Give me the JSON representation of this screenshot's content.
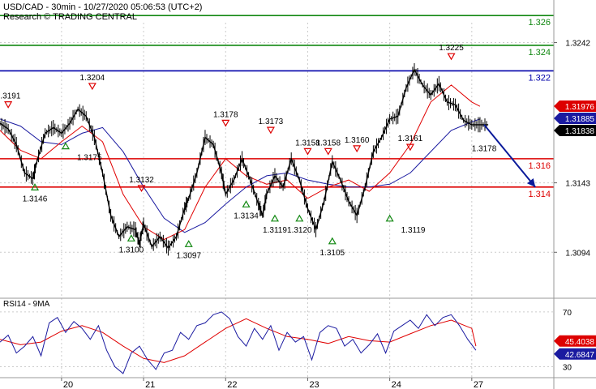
{
  "header": {
    "title": "USD/CAD - 30min - 10/27/2020 05:06:53 (UTC+2)",
    "subtitle": "Research © TRADING CENTRAL"
  },
  "colors": {
    "price": "#000000",
    "ma_fast": "#e00000",
    "ma_slow": "#1a1aa0",
    "resistance_green": "#118811",
    "resistance_blue": "#0000aa",
    "support_red": "#dd0000",
    "arrow": "#0a1a9a",
    "tag_red": "#dd0000",
    "tag_blue": "#1a1aa0",
    "tag_black": "#000000"
  },
  "chart_data": [
    {
      "type": "line",
      "name": "price-panel",
      "ylim": [
        1.3065,
        1.3272
      ],
      "y_ticks": [
        {
          "value": 1.3242,
          "label": "1.3242"
        },
        {
          "value": 1.3143,
          "label": "1.3143"
        },
        {
          "value": 1.3094,
          "label": "1.3094"
        }
      ],
      "x_ticks": [
        "20",
        "21",
        "22",
        "23",
        "24",
        "27"
      ],
      "x_tick_positions": [
        1.0,
        3.0,
        5.0,
        7.0,
        9.0,
        11.0
      ],
      "xlim": [
        -0.5,
        13.0
      ],
      "levels": [
        {
          "value": 1.3261,
          "label": "1.326",
          "color": "#118811"
        },
        {
          "value": 1.324,
          "label": "1.324",
          "color": "#118811"
        },
        {
          "value": 1.3222,
          "label": "1.322",
          "color": "#0000aa"
        },
        {
          "value": 1.316,
          "label": "1.316",
          "color": "#dd0000"
        },
        {
          "value": 1.314,
          "label": "1.314",
          "color": "#dd0000"
        }
      ],
      "price_tags": [
        {
          "value": 1.31976,
          "label": "1.31976",
          "color": "#dd0000"
        },
        {
          "value": 1.31885,
          "label": "1.31885",
          "color": "#1a1aa0"
        },
        {
          "value": 1.31838,
          "label": "1.31838",
          "color": "#000000"
        }
      ],
      "series": [
        {
          "name": "",
          "x": [
            -0.5,
            -0.3,
            -0.1,
            0.1,
            0.3,
            0.4,
            0.6,
            0.8,
            1.0,
            1.2,
            1.4,
            1.6,
            1.8,
            2.0,
            2.2,
            2.4,
            2.6,
            2.8,
            2.9,
            3.0,
            3.2,
            3.4,
            3.6,
            3.8,
            4.0,
            4.1,
            4.3,
            4.5,
            4.7,
            4.9,
            5.0,
            5.2,
            5.4,
            5.6,
            5.8,
            5.9,
            6.0,
            6.2,
            6.4,
            6.6,
            6.8,
            7.0,
            7.2,
            7.4,
            7.6,
            7.8,
            8.0,
            8.2,
            8.4,
            8.6,
            8.8,
            9.0,
            9.2,
            9.4,
            9.6,
            9.8,
            10.0,
            10.2,
            10.4,
            10.6,
            10.8,
            11.0,
            11.2,
            11.4
          ],
          "y": [
            1.3185,
            1.3181,
            1.317,
            1.315,
            1.3146,
            1.3158,
            1.3178,
            1.3182,
            1.3178,
            1.3185,
            1.3195,
            1.319,
            1.3175,
            1.315,
            1.312,
            1.3105,
            1.3112,
            1.311,
            1.31,
            1.3114,
            1.3098,
            1.3105,
            1.3097,
            1.3105,
            1.3125,
            1.3132,
            1.315,
            1.3175,
            1.317,
            1.315,
            1.3135,
            1.3145,
            1.316,
            1.3145,
            1.3128,
            1.312,
            1.3135,
            1.3148,
            1.314,
            1.316,
            1.3145,
            1.3125,
            1.311,
            1.313,
            1.3158,
            1.3145,
            1.313,
            1.312,
            1.314,
            1.3165,
            1.3175,
            1.3188,
            1.319,
            1.321,
            1.3223,
            1.3212,
            1.3205,
            1.3213,
            1.32,
            1.3198,
            1.3187,
            1.3184,
            1.3184,
            1.3184
          ]
        },
        {
          "name": "",
          "x": [
            -0.5,
            0.0,
            0.5,
            1.0,
            1.5,
            2.0,
            2.5,
            3.0,
            3.5,
            4.0,
            4.5,
            5.0,
            5.5,
            6.0,
            6.5,
            7.0,
            7.5,
            8.0,
            8.5,
            9.0,
            9.5,
            10.0,
            10.5,
            11.0,
            11.2
          ],
          "y": [
            1.318,
            1.3166,
            1.316,
            1.3172,
            1.3183,
            1.3172,
            1.3135,
            1.3112,
            1.3103,
            1.311,
            1.314,
            1.316,
            1.3148,
            1.3142,
            1.3145,
            1.3132,
            1.314,
            1.3145,
            1.3137,
            1.315,
            1.317,
            1.32,
            1.3212,
            1.32,
            1.3197
          ]
        },
        {
          "name": "",
          "x": [
            -0.5,
            0.0,
            0.5,
            1.0,
            1.5,
            2.0,
            2.5,
            3.0,
            3.5,
            4.0,
            4.5,
            5.0,
            5.5,
            6.0,
            6.5,
            7.0,
            7.5,
            8.0,
            8.5,
            9.0,
            9.5,
            10.0,
            10.5,
            11.0,
            11.2
          ],
          "y": [
            1.3188,
            1.3183,
            1.3172,
            1.317,
            1.3178,
            1.3182,
            1.3165,
            1.314,
            1.3118,
            1.3108,
            1.3115,
            1.3128,
            1.314,
            1.3148,
            1.315,
            1.3145,
            1.3142,
            1.314,
            1.314,
            1.3142,
            1.315,
            1.3165,
            1.318,
            1.3186,
            1.3188
          ]
        }
      ],
      "forecast_arrow": {
        "from": [
          11.3,
          1.3184
        ],
        "to": [
          12.55,
          1.314
        ]
      },
      "annotations": [
        {
          "label": "1.3191",
          "x": -0.3,
          "y": 1.3191,
          "marker": "down",
          "pos": "above"
        },
        {
          "label": "1.3146",
          "x": 0.35,
          "y": 1.3146,
          "marker": "up",
          "pos": "below"
        },
        {
          "label": "1.3175",
          "x": 1.1,
          "y": 1.3175,
          "marker": "up",
          "pos": "below-right"
        },
        {
          "label": "1.3204",
          "x": 1.75,
          "y": 1.3204,
          "marker": "down",
          "pos": "above"
        },
        {
          "label": "1.3132",
          "x": 2.95,
          "y": 1.3132,
          "marker": "down",
          "pos": "above"
        },
        {
          "label": "1.3100",
          "x": 2.7,
          "y": 1.311,
          "marker": "up",
          "pos": "below"
        },
        {
          "label": "1.3097",
          "x": 4.1,
          "y": 1.3106,
          "marker": "up",
          "pos": "below"
        },
        {
          "label": "1.3178",
          "x": 5.0,
          "y": 1.3178,
          "marker": "down",
          "pos": "above"
        },
        {
          "label": "1.3134",
          "x": 5.5,
          "y": 1.3134,
          "marker": "up",
          "pos": "below"
        },
        {
          "label": "1.3173",
          "x": 6.1,
          "y": 1.3173,
          "marker": "down",
          "pos": "above"
        },
        {
          "label": "1.3119",
          "x": 6.2,
          "y": 1.3124,
          "marker": "up",
          "pos": "below"
        },
        {
          "label": "1.3120",
          "x": 6.8,
          "y": 1.3124,
          "marker": "up",
          "pos": "below"
        },
        {
          "label": "1.3158",
          "x": 7.0,
          "y": 1.3158,
          "marker": "down",
          "pos": "above"
        },
        {
          "label": "1.3158",
          "x": 7.5,
          "y": 1.3158,
          "marker": "down",
          "pos": "above"
        },
        {
          "label": "1.3105",
          "x": 7.6,
          "y": 1.3108,
          "marker": "up",
          "pos": "below"
        },
        {
          "label": "1.3160",
          "x": 8.2,
          "y": 1.316,
          "marker": "down",
          "pos": "above"
        },
        {
          "label": "1.3119",
          "x": 9.0,
          "y": 1.3124,
          "marker": "up",
          "pos": "below-right"
        },
        {
          "label": "1.3161",
          "x": 9.5,
          "y": 1.3161,
          "marker": "down",
          "pos": "above"
        },
        {
          "label": "1.3225",
          "x": 10.5,
          "y": 1.3225,
          "marker": "down",
          "pos": "above"
        },
        {
          "label": "1.3178",
          "x": 11.3,
          "y": 1.3178,
          "marker": "none",
          "pos": "below"
        }
      ]
    },
    {
      "type": "line",
      "name": "rsi-panel",
      "title": "RSI14 - 9MA",
      "ylim": [
        22,
        80
      ],
      "y_ticks": [
        {
          "value": 70,
          "label": "70"
        },
        {
          "value": 30,
          "label": "30"
        }
      ],
      "price_tags": [
        {
          "value": 45.4038,
          "label": "45.4038",
          "color": "#dd0000"
        },
        {
          "value": 42.6847,
          "label": "42.6847",
          "color": "#1a1aa0"
        }
      ],
      "xlim": [
        -0.5,
        13.0
      ],
      "series": [
        {
          "name": "",
          "x": [
            -0.5,
            -0.3,
            -0.1,
            0.1,
            0.3,
            0.5,
            0.7,
            0.9,
            1.1,
            1.3,
            1.5,
            1.7,
            1.9,
            2.1,
            2.3,
            2.5,
            2.7,
            2.9,
            3.1,
            3.3,
            3.5,
            3.7,
            3.9,
            4.1,
            4.3,
            4.5,
            4.7,
            4.9,
            5.1,
            5.3,
            5.5,
            5.7,
            5.9,
            6.1,
            6.3,
            6.5,
            6.7,
            6.9,
            7.1,
            7.3,
            7.5,
            7.7,
            7.9,
            8.1,
            8.3,
            8.5,
            8.7,
            8.9,
            9.1,
            9.3,
            9.5,
            9.7,
            9.9,
            10.1,
            10.3,
            10.5,
            10.7,
            10.9,
            11.1
          ],
          "y": [
            48,
            53,
            40,
            45,
            52,
            38,
            62,
            66,
            55,
            63,
            58,
            50,
            60,
            42,
            30,
            25,
            40,
            45,
            35,
            28,
            40,
            42,
            55,
            50,
            60,
            62,
            68,
            70,
            65,
            52,
            45,
            58,
            50,
            60,
            42,
            55,
            48,
            52,
            35,
            55,
            60,
            58,
            45,
            50,
            40,
            46,
            54,
            40,
            56,
            60,
            64,
            58,
            68,
            60,
            66,
            68,
            60,
            50,
            42
          ]
        },
        {
          "name": "",
          "x": [
            -0.5,
            0.0,
            0.5,
            1.0,
            1.5,
            2.0,
            2.5,
            3.0,
            3.5,
            4.0,
            4.5,
            5.0,
            5.5,
            6.0,
            6.5,
            7.0,
            7.5,
            8.0,
            8.5,
            9.0,
            9.5,
            10.0,
            10.5,
            11.0,
            11.1
          ],
          "y": [
            50,
            46,
            48,
            56,
            60,
            55,
            45,
            36,
            33,
            38,
            48,
            58,
            65,
            58,
            52,
            50,
            47,
            52,
            49,
            48,
            54,
            60,
            64,
            58,
            45
          ]
        }
      ]
    }
  ]
}
